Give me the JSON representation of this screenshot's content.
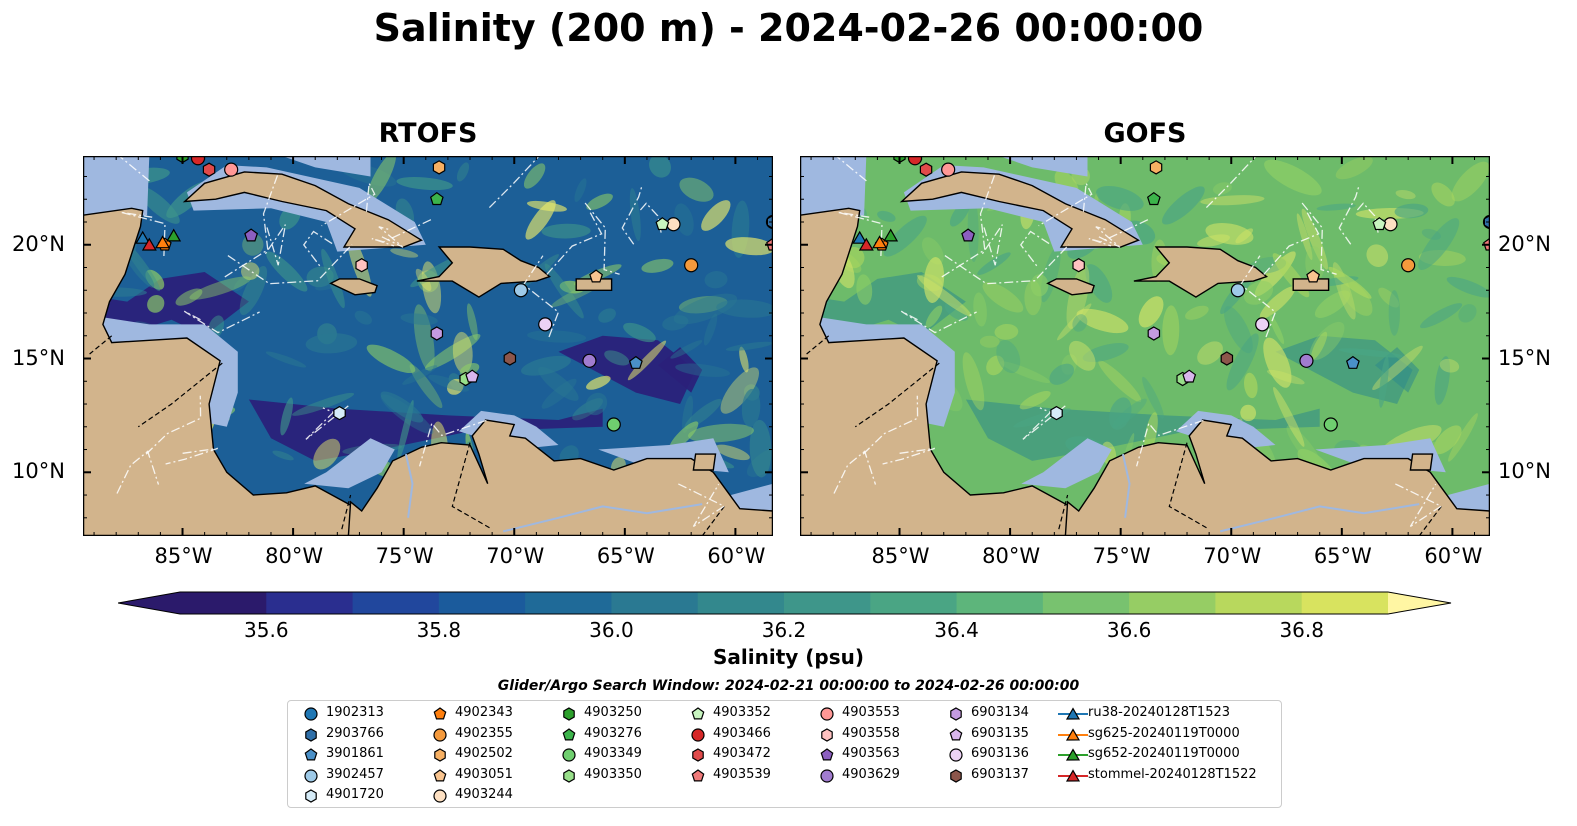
{
  "title": "Salinity (200 m) - 2024-02-26 00:00:00",
  "panels": [
    {
      "title": "RTOFS"
    },
    {
      "title": "GOFS"
    }
  ],
  "axes": {
    "lon_ticks": [
      "85°W",
      "80°W",
      "75°W",
      "70°W",
      "65°W",
      "60°W"
    ],
    "lat_ticks": [
      "20°N",
      "15°N",
      "10°N"
    ],
    "lon_range": [
      -89.5,
      -58.3
    ],
    "lat_range": [
      7.2,
      23.9
    ]
  },
  "colorbar": {
    "label": "Salinity (psu)",
    "ticks": [
      "35.6",
      "35.8",
      "36.0",
      "36.2",
      "36.4",
      "36.6",
      "36.8"
    ],
    "range": [
      35.5,
      36.9
    ],
    "extend": "both",
    "colors": [
      "#2b1a6b",
      "#2a2e8f",
      "#21479d",
      "#1b5b9c",
      "#1f6a98",
      "#2a7992",
      "#33888d",
      "#3e968a",
      "#4aa584",
      "#5db57b",
      "#78c26f",
      "#96cd64",
      "#b8d85d",
      "#d8e35f"
    ],
    "over_color": "#fff6a3",
    "under_color": "#2b1a6b"
  },
  "colors": {
    "land": "#d2b48c",
    "shelf": "#9fb8e0",
    "deep_rtofs": "#26468f",
    "deep_gofs": "#7fc06a",
    "ocean_dark": "#2b1a6b"
  },
  "legend": {
    "title": "Glider/Argo Search Window: 2024-02-21 00:00:00 to 2024-02-26 00:00:00",
    "columns": [
      [
        {
          "label": "1902313",
          "marker": "circle",
          "color": "#1f77b4"
        },
        {
          "label": "2903766",
          "marker": "hexagon",
          "color": "#2f6fa8"
        },
        {
          "label": "3901861",
          "marker": "pentagon",
          "color": "#4a90c8"
        },
        {
          "label": "3902457",
          "marker": "circle",
          "color": "#9ecae8"
        },
        {
          "label": "4901720",
          "marker": "hexagon",
          "color": "#d6ecf8"
        }
      ],
      [
        {
          "label": "4902343",
          "marker": "pentagon",
          "color": "#ff7f0e"
        },
        {
          "label": "4902355",
          "marker": "circle",
          "color": "#f59a3c"
        },
        {
          "label": "4902502",
          "marker": "hexagon",
          "color": "#f7b063"
        },
        {
          "label": "4903051",
          "marker": "pentagon",
          "color": "#f9c48f"
        },
        {
          "label": "4903244",
          "marker": "circle",
          "color": "#fde0c2"
        }
      ],
      [
        {
          "label": "4903250",
          "marker": "hexagon",
          "color": "#2ca02c"
        },
        {
          "label": "4903276",
          "marker": "pentagon",
          "color": "#3cb44b"
        },
        {
          "label": "4903349",
          "marker": "circle",
          "color": "#6fcf6f"
        },
        {
          "label": "4903350",
          "marker": "hexagon",
          "color": "#98df8a"
        }
      ],
      [
        {
          "label": "4903352",
          "marker": "pentagon",
          "color": "#c8f5c0"
        },
        {
          "label": "4903466",
          "marker": "circle",
          "color": "#d62728"
        },
        {
          "label": "4903472",
          "marker": "hexagon",
          "color": "#e04a4a"
        },
        {
          "label": "4903539",
          "marker": "pentagon",
          "color": "#f07a7a"
        }
      ],
      [
        {
          "label": "4903553",
          "marker": "circle",
          "color": "#ff9896"
        },
        {
          "label": "4903558",
          "marker": "hexagon",
          "color": "#ffc2c1"
        },
        {
          "label": "4903563",
          "marker": "pentagon",
          "color": "#8c5fc0"
        },
        {
          "label": "4903629",
          "marker": "circle",
          "color": "#a17ccf"
        }
      ],
      [
        {
          "label": "6903134",
          "marker": "hexagon",
          "color": "#c49be0"
        },
        {
          "label": "6903135",
          "marker": "pentagon",
          "color": "#d8b6ec"
        },
        {
          "label": "6903136",
          "marker": "circle",
          "color": "#ecd2f5"
        },
        {
          "label": "6903137",
          "marker": "hexagon",
          "color": "#8c564b"
        }
      ],
      [
        {
          "label": "ru38-20240128T1523",
          "marker": "triangle",
          "color": "#1f77b4"
        },
        {
          "label": "sg625-20240119T0000",
          "marker": "triangle",
          "color": "#ff7f0e"
        },
        {
          "label": "sg652-20240119T0000",
          "marker": "triangle",
          "color": "#2ca02c"
        },
        {
          "label": "stommel-20240128T1522",
          "marker": "triangle",
          "color": "#d62728"
        }
      ]
    ]
  },
  "observations": [
    {
      "id": "1902313",
      "lon": -58.3,
      "lat": 21.0
    },
    {
      "id": "2903766",
      "lon": -58.3,
      "lat": 21.0
    },
    {
      "id": "3901861",
      "lon": -64.5,
      "lat": 14.8
    },
    {
      "id": "3902457",
      "lon": -69.7,
      "lat": 18.0
    },
    {
      "id": "4901720",
      "lon": -77.9,
      "lat": 12.6
    },
    {
      "id": "4902343",
      "lon": -85.8,
      "lat": 20.0
    },
    {
      "id": "4902355",
      "lon": -62.0,
      "lat": 19.1
    },
    {
      "id": "4902502",
      "lon": -73.4,
      "lat": 23.4
    },
    {
      "id": "4903051",
      "lon": -66.3,
      "lat": 18.6
    },
    {
      "id": "4903244",
      "lon": -62.8,
      "lat": 20.9
    },
    {
      "id": "4903250",
      "lon": -85.0,
      "lat": 23.9
    },
    {
      "id": "4903276",
      "lon": -73.5,
      "lat": 22.0
    },
    {
      "id": "4903349",
      "lon": -65.5,
      "lat": 12.1
    },
    {
      "id": "4903350",
      "lon": -72.2,
      "lat": 14.1
    },
    {
      "id": "4903352",
      "lon": -63.3,
      "lat": 20.9
    },
    {
      "id": "4903466",
      "lon": -84.3,
      "lat": 23.8
    },
    {
      "id": "4903472",
      "lon": -83.8,
      "lat": 23.3
    },
    {
      "id": "4903539",
      "lon": -58.3,
      "lat": 20.0
    },
    {
      "id": "4903553",
      "lon": -82.8,
      "lat": 23.3
    },
    {
      "id": "4903558",
      "lon": -76.9,
      "lat": 19.1
    },
    {
      "id": "4903563",
      "lon": -81.9,
      "lat": 20.4
    },
    {
      "id": "4903629",
      "lon": -66.6,
      "lat": 14.9
    },
    {
      "id": "6903134",
      "lon": -73.5,
      "lat": 16.1
    },
    {
      "id": "6903135",
      "lon": -71.9,
      "lat": 14.2
    },
    {
      "id": "6903136",
      "lon": -68.6,
      "lat": 16.5
    },
    {
      "id": "6903137",
      "lon": -70.2,
      "lat": 15.0
    },
    {
      "id": "ru38-20240128T1523",
      "lon": -86.8,
      "lat": 20.3
    },
    {
      "id": "sg625-20240119T0000",
      "lon": -85.9,
      "lat": 20.1
    },
    {
      "id": "sg652-20240119T0000",
      "lon": -85.4,
      "lat": 20.4
    },
    {
      "id": "stommel-20240128T1522",
      "lon": -86.5,
      "lat": 20.0
    }
  ]
}
